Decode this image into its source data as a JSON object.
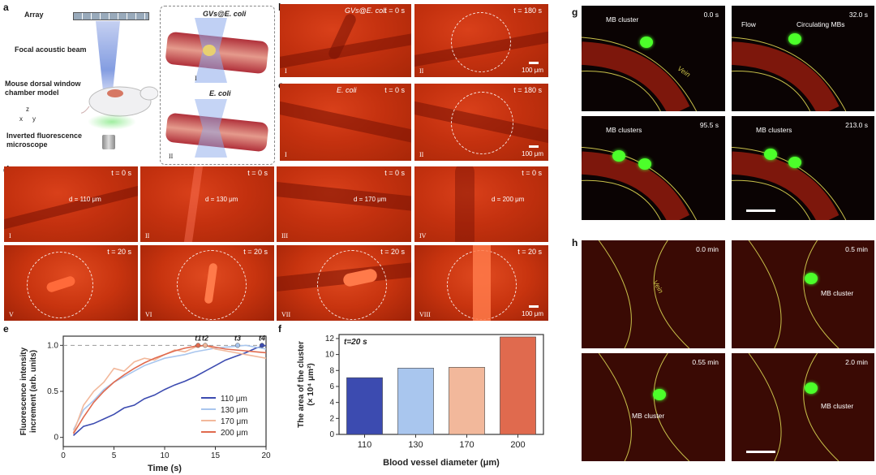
{
  "panel_letters": {
    "a": "a",
    "b": "b",
    "c": "c",
    "d": "d",
    "e": "e",
    "f": "f",
    "g": "g",
    "h": "h"
  },
  "schematic": {
    "array": "Array",
    "beam": "Focal acoustic beam",
    "mouse": "Mouse dorsal window chamber model",
    "microscope": "Inverted fluorescence microscope",
    "axis_z": "z",
    "axis_x": "x",
    "axis_y": "y",
    "inset_top": "GVs@E. coli",
    "inset_bottom": "E. coli",
    "inset_top_num": "I",
    "inset_bottom_num": "II"
  },
  "panel_b": {
    "left_label": "GVs@E. coli",
    "left_time": "t = 0 s",
    "left_num": "I",
    "right_time": "t = 180 s",
    "right_num": "II",
    "scale": "100 μm"
  },
  "panel_c": {
    "left_label": "E. coli",
    "left_time": "t = 0 s",
    "left_num": "I",
    "right_time": "t = 180 s",
    "right_num": "II",
    "scale": "100 μm"
  },
  "panel_d": {
    "top": [
      {
        "time": "t = 0 s",
        "d": "d = 110 μm",
        "num": "I"
      },
      {
        "time": "t = 0 s",
        "d": "d = 130 μm",
        "num": "II"
      },
      {
        "time": "t = 0 s",
        "d": "d = 170 μm",
        "num": "III"
      },
      {
        "time": "t = 0 s",
        "d": "d = 200 μm",
        "num": "IV"
      }
    ],
    "bottom": [
      {
        "time": "t = 20 s",
        "num": "V"
      },
      {
        "time": "t = 20 s",
        "num": "VI"
      },
      {
        "time": "t = 20 s",
        "num": "VII"
      },
      {
        "time": "t = 20 s",
        "num": "VIII"
      }
    ],
    "scale": "100 μm"
  },
  "panel_g": {
    "tiles": [
      {
        "time": "0.0 s",
        "labels": [
          "MB cluster",
          "Vein"
        ]
      },
      {
        "time": "32.0 s",
        "labels": [
          "Flow",
          "Circulating MBs"
        ]
      },
      {
        "time": "95.5 s",
        "labels": [
          "MB clusters"
        ]
      },
      {
        "time": "213.0 s",
        "labels": [
          "MB clusters"
        ]
      }
    ]
  },
  "panel_h": {
    "tiles": [
      {
        "time": "0.0 min",
        "labels": [
          "Vein"
        ]
      },
      {
        "time": "0.5 min",
        "labels": [
          "MB cluster"
        ]
      },
      {
        "time": "0.55 min",
        "labels": [
          "MB cluster"
        ]
      },
      {
        "time": "2.0 min",
        "labels": [
          "MB cluster"
        ]
      }
    ]
  },
  "colors": {
    "c110": "#3c4bb0",
    "c130": "#a9c6ee",
    "c170": "#f2b89b",
    "c200": "#e06a4e",
    "green": "#4cff2a"
  },
  "chart_data": [
    {
      "type": "line",
      "xlabel": "Time (s)",
      "ylabel": "Fluorescence intensity increment (arb. units)",
      "xlim": [
        0,
        20
      ],
      "ylim": [
        -0.1,
        1.1
      ],
      "xticks": [
        "0",
        "5",
        "10",
        "15",
        "20"
      ],
      "yticks": [
        "0",
        "0.5",
        "1.0"
      ],
      "reference_line": 1.0,
      "markers": [
        "t1",
        "t2",
        "t3",
        "t4"
      ],
      "series": [
        {
          "name": "110 μm",
          "color": "#3c4bb0",
          "x": [
            1,
            2,
            3,
            4,
            5,
            6,
            7,
            8,
            9,
            10,
            11,
            12,
            13,
            14,
            15,
            16,
            17,
            18,
            19,
            20
          ],
          "y": [
            0.02,
            0.12,
            0.15,
            0.2,
            0.25,
            0.32,
            0.35,
            0.42,
            0.46,
            0.52,
            0.57,
            0.61,
            0.66,
            0.72,
            0.78,
            0.84,
            0.88,
            0.92,
            0.97,
            1.0
          ]
        },
        {
          "name": "130 μm",
          "color": "#a9c6ee",
          "x": [
            1,
            2,
            3,
            4,
            5,
            6,
            7,
            8,
            9,
            10,
            11,
            12,
            13,
            14,
            15,
            16,
            17,
            18,
            19,
            20
          ],
          "y": [
            0.08,
            0.3,
            0.4,
            0.52,
            0.6,
            0.66,
            0.72,
            0.78,
            0.82,
            0.86,
            0.88,
            0.9,
            0.93,
            0.95,
            0.97,
            0.98,
            0.99,
            1.0,
            0.98,
            0.96
          ]
        },
        {
          "name": "170 μm",
          "color": "#f2b89b",
          "x": [
            1,
            2,
            3,
            4,
            5,
            6,
            7,
            8,
            9,
            10,
            11,
            12,
            13,
            14,
            15,
            16,
            17,
            18,
            19,
            20
          ],
          "y": [
            0.05,
            0.35,
            0.5,
            0.6,
            0.75,
            0.72,
            0.82,
            0.86,
            0.84,
            0.9,
            0.95,
            0.93,
            0.98,
            1.0,
            0.96,
            0.94,
            0.92,
            0.9,
            0.88,
            0.86
          ]
        },
        {
          "name": "200 μm",
          "color": "#e06a4e",
          "x": [
            1,
            2,
            3,
            4,
            5,
            6,
            7,
            8,
            9,
            10,
            11,
            12,
            13,
            14,
            15,
            16,
            17,
            18,
            19,
            20
          ],
          "y": [
            0.04,
            0.22,
            0.38,
            0.5,
            0.6,
            0.68,
            0.75,
            0.81,
            0.86,
            0.9,
            0.94,
            0.97,
            0.99,
            1.0,
            0.98,
            0.96,
            0.95,
            0.94,
            0.93,
            0.92
          ]
        }
      ]
    },
    {
      "type": "bar",
      "title": "t=20 s",
      "xlabel": "Blood vessel diameter (μm)",
      "ylabel": "The area of the cluster (× 10⁴ μm²)",
      "categories": [
        "110",
        "130",
        "170",
        "200"
      ],
      "values": [
        7.1,
        8.3,
        8.4,
        12.2
      ],
      "colors": [
        "#3c4bb0",
        "#a9c6ee",
        "#f2b89b",
        "#e06a4e"
      ],
      "ylim": [
        0,
        12.5
      ],
      "yticks": [
        "0",
        "2",
        "4",
        "6",
        "8",
        "10",
        "12"
      ]
    }
  ]
}
